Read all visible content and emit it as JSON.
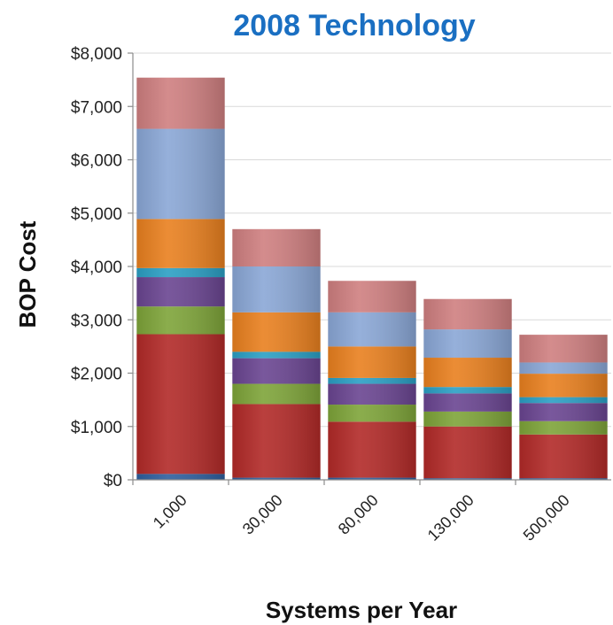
{
  "chart_data": {
    "type": "bar",
    "stacked": true,
    "title": "2008 Technology",
    "xlabel": "Systems per Year",
    "ylabel": "BOP Cost",
    "categories": [
      "1,000",
      "30,000",
      "80,000",
      "130,000",
      "500,000"
    ],
    "ylim": [
      0,
      8000
    ],
    "yticks": [
      "$0",
      "$1,000",
      "$2,000",
      "$3,000",
      "$4,000",
      "$5,000",
      "$6,000",
      "$7,000",
      "$8,000"
    ],
    "grid": true,
    "legend": "none",
    "series": [
      {
        "color": "#2e5f9e",
        "values": [
          110,
          40,
          40,
          30,
          30
        ]
      },
      {
        "color": "#b22a28",
        "values": [
          2620,
          1380,
          1050,
          970,
          820
        ]
      },
      {
        "color": "#7ea439",
        "values": [
          520,
          380,
          320,
          280,
          250
        ]
      },
      {
        "color": "#6a4591",
        "values": [
          550,
          480,
          390,
          340,
          340
        ]
      },
      {
        "color": "#2b9fc4",
        "values": [
          170,
          120,
          110,
          120,
          110
        ]
      },
      {
        "color": "#e9801f",
        "values": [
          920,
          740,
          590,
          550,
          440
        ]
      },
      {
        "color": "#8aa7d6",
        "values": [
          1690,
          860,
          640,
          530,
          210
        ]
      },
      {
        "color": "#cf7f80",
        "values": [
          960,
          700,
          590,
          570,
          520
        ]
      }
    ]
  }
}
